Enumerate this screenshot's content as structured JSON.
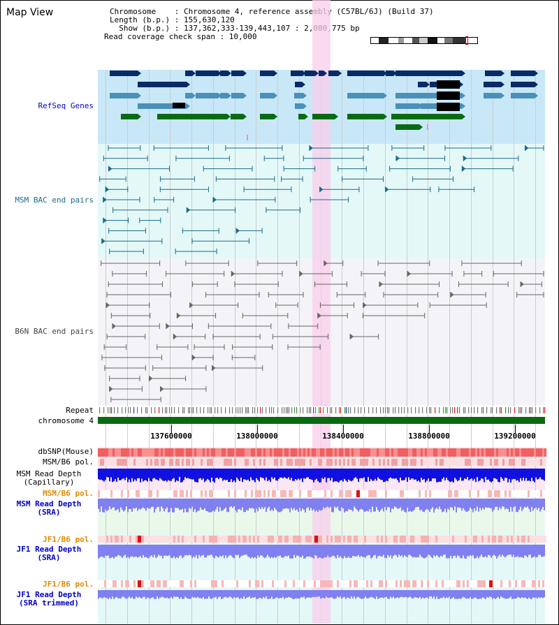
{
  "header": {
    "title": "Map View",
    "chromosome_line": "Chromosome    : Chromosome 4, reference assembly (C57BL/6J) (Build 37)",
    "length_line": "Length (b.p.) : 155,630,120",
    "show_line": "  Show (b.p.) : 137,362,333-139,443,107 : 2,080,775 bp",
    "coverage_line": "Read coverage check span : 10,000"
  },
  "tracks": {
    "refseq": "RefSeq Genes",
    "msm_bac": "MSM BAC end pairs",
    "b6n_bac": "B6N BAC end pairs",
    "repeat": "Repeat",
    "chromosome": "chromosome 4",
    "dbsnp": "dbSNP(Mouse)",
    "msm_b6_pol_1": "MSM/B6 pol.",
    "msm_depth_cap_1": "MSM Read Depth",
    "msm_depth_cap_2": "(Capillary)",
    "msm_b6_pol_2": "MSM/B6 pol.",
    "msm_depth_sra_1": "MSM Read Depth",
    "msm_depth_sra_2": "(SRA)",
    "jf1_b6_pol_1": "JF1/B6 pol.",
    "jf1_depth_sra_1": "JF1 Read Depth",
    "jf1_depth_sra_2": "(SRA)",
    "jf1_b6_pol_2": "JF1/B6 pol.",
    "jf1_depth_trim_1": "JF1 Read Depth",
    "jf1_depth_trim_2": "(SRA trimmed)"
  },
  "axis": {
    "ticks": [
      "137600000",
      "138000000",
      "138400000",
      "138800000",
      "139200000"
    ]
  },
  "colors": {
    "refseq_bg": "#c8e8f8",
    "msm_bac_bg": "#e4f8f8",
    "b6n_bac_bg": "#f4f4f8",
    "highlight": "#f9cdec",
    "gene_dark": "#0a2a66",
    "gene_mid": "#4a90b8",
    "gene_green": "#0a6a14",
    "msm_bac_line": "#1a6a8a",
    "b6n_bac_line": "#666666",
    "chromosome_bar": "#0a6a10",
    "dbsnp": "#f06060",
    "depth_dark": "#1010e0",
    "depth_light": "#8080f0",
    "label_orange": "#e08a00",
    "label_blue": "#0000cc",
    "label_teal": "#1a5a8a"
  }
}
